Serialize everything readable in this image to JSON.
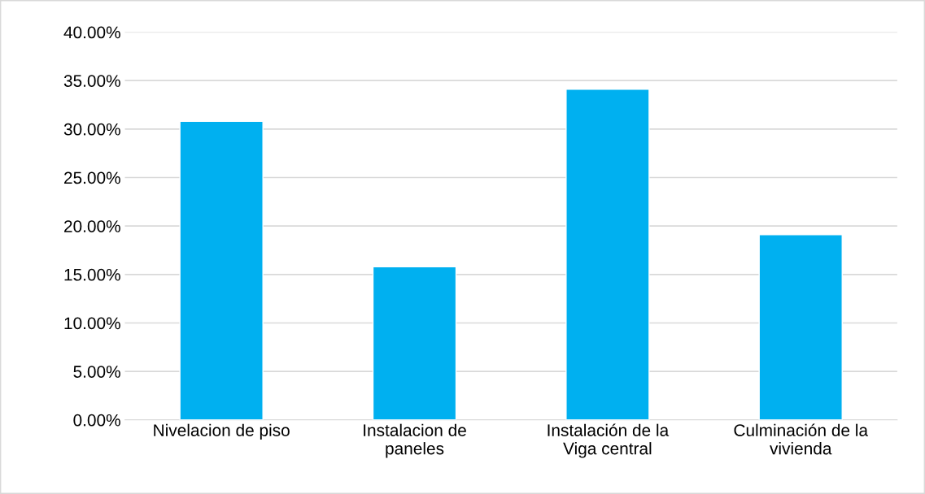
{
  "chart_data": {
    "type": "bar",
    "categories": [
      "Nivelacion de piso",
      "Instalacion de\npaneles",
      "Instalación de la\nViga central",
      "Culminación de la\nvivienda"
    ],
    "values": [
      30.8,
      15.8,
      34.1,
      19.1
    ],
    "color": "#00b0f0",
    "ylim": [
      0,
      40
    ],
    "yticks": [
      {
        "value": 0,
        "label": "0.00%"
      },
      {
        "value": 5,
        "label": "5.00%"
      },
      {
        "value": 10,
        "label": "10.00%"
      },
      {
        "value": 15,
        "label": "15.00%"
      },
      {
        "value": 20,
        "label": "20.00%"
      },
      {
        "value": 25,
        "label": "25.00%"
      },
      {
        "value": 30,
        "label": "30.00%"
      },
      {
        "value": 35,
        "label": "35.00%"
      },
      {
        "value": 40,
        "label": "40.00%"
      }
    ],
    "grid": "y"
  }
}
